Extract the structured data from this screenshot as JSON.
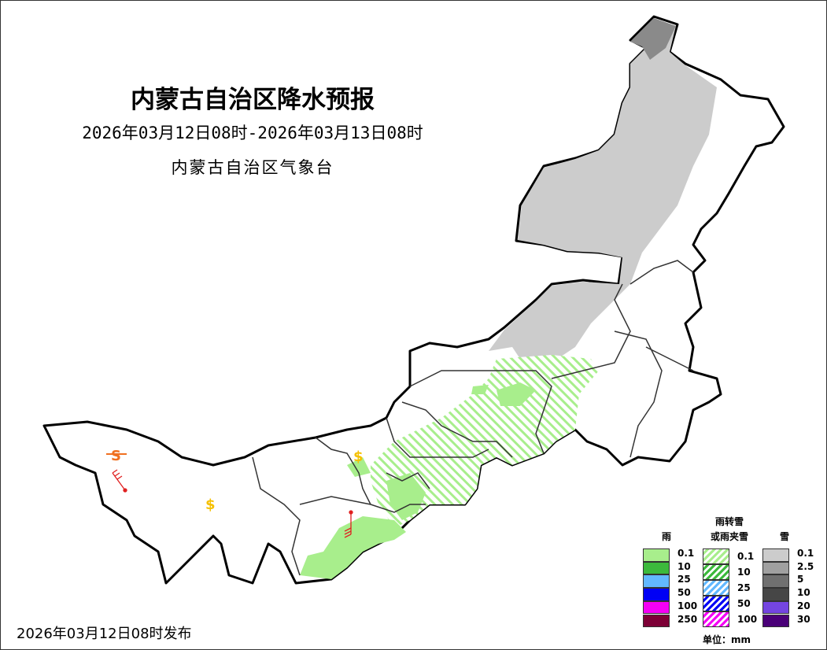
{
  "title": "内蒙古自治区降水预报",
  "period": "2026年03月12日08时-2026年03月13日08时",
  "agency": "内蒙古自治区气象台",
  "issued": "2026年03月12日08时发布",
  "legend": {
    "rain_title": "雨",
    "mixed_title_1": "雨转雪",
    "mixed_title_2": "或雨夹雪",
    "snow_title": "雪",
    "unit": "单位：mm",
    "rain": [
      {
        "v": "0.1",
        "c": "#a8ee8c"
      },
      {
        "v": "10",
        "c": "#3cb93c"
      },
      {
        "v": "25",
        "c": "#62b8ff"
      },
      {
        "v": "50",
        "c": "#0000f5"
      },
      {
        "v": "100",
        "c": "#f500f5"
      },
      {
        "v": "250",
        "c": "#7d0036"
      }
    ],
    "mixed": [
      {
        "v": "0.1",
        "c": "#a8ee8c"
      },
      {
        "v": "10",
        "c": "#3cb93c"
      },
      {
        "v": "25",
        "c": "#62b8ff"
      },
      {
        "v": "50",
        "c": "#0000f5"
      },
      {
        "v": "100",
        "c": "#f500f5"
      }
    ],
    "snow": [
      {
        "v": "0.1",
        "c": "#cccccc"
      },
      {
        "v": "2.5",
        "c": "#a0a0a0"
      },
      {
        "v": "5",
        "c": "#707070"
      },
      {
        "v": "10",
        "c": "#464646"
      },
      {
        "v": "20",
        "c": "#7445e0"
      },
      {
        "v": "30",
        "c": "#4a0078"
      }
    ]
  },
  "symbols": {
    "sandstorm": "S",
    "dust": "$",
    "wind_barb": "wind-barb"
  }
}
